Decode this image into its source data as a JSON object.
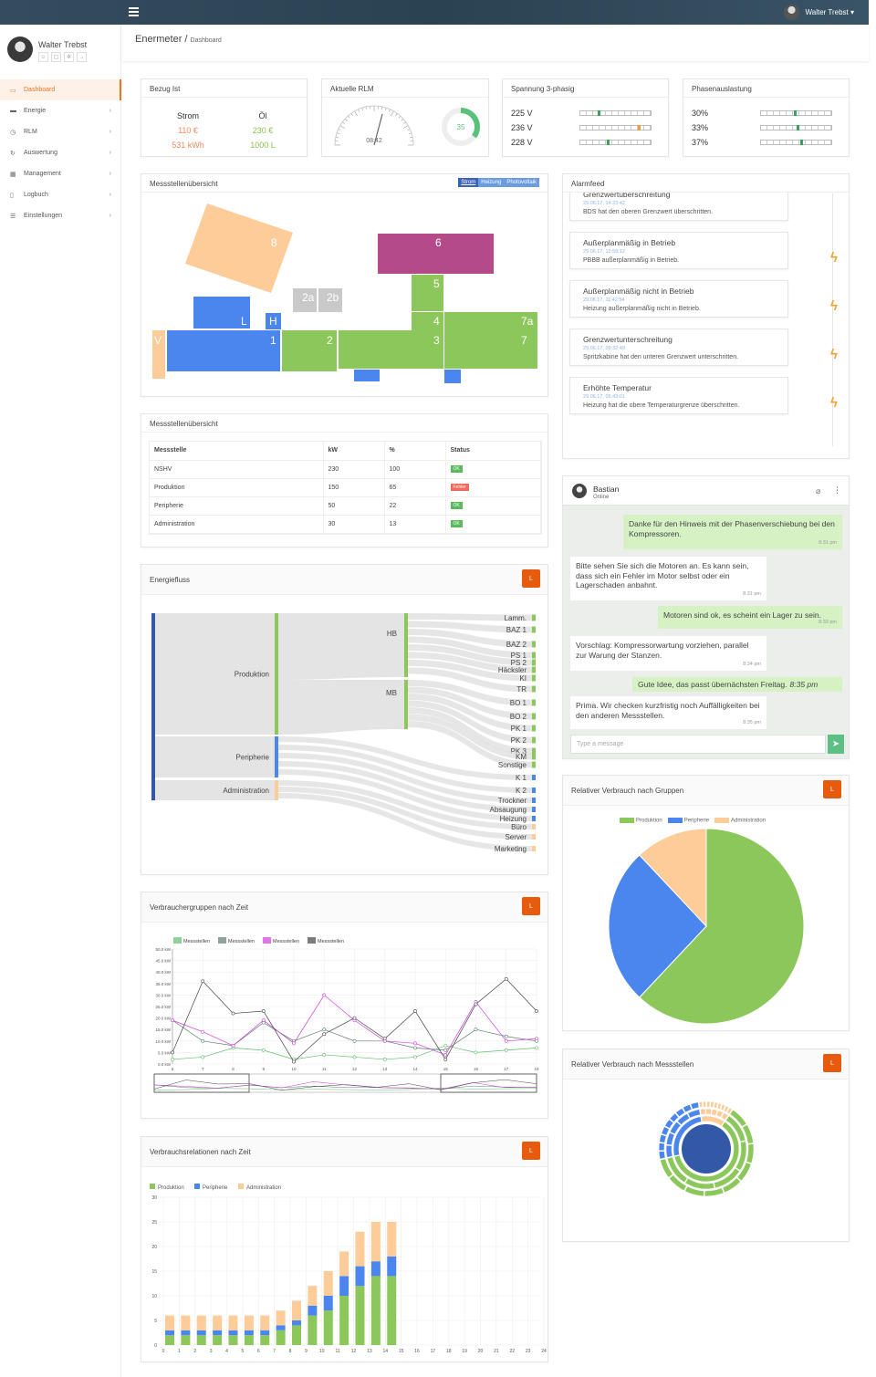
{
  "topbar": {
    "user": "Walter Trebst ▾"
  },
  "sidebar": {
    "user": "Walter Trebst",
    "items": [
      {
        "label": "Dashboard",
        "icon": "▭"
      },
      {
        "label": "Energie",
        "icon": "▬"
      },
      {
        "label": "RLM",
        "icon": "◷"
      },
      {
        "label": "Auswertung",
        "icon": "↻"
      },
      {
        "label": "Management",
        "icon": "▦"
      },
      {
        "label": "Logbuch",
        "icon": "▯"
      },
      {
        "label": "Einstellungen",
        "icon": "☰"
      }
    ]
  },
  "title": {
    "main": "Enermeter",
    "sep": "/",
    "sub": "Dashboard"
  },
  "bezug": {
    "title": "Bezug Ist",
    "col1": {
      "label": "Strom",
      "v1": "110 €",
      "v2": "531 kWh"
    },
    "col2": {
      "label": "Öl",
      "v1": "230 €",
      "v2": "1000 L"
    }
  },
  "rlm": {
    "title": "Aktuelle RLM",
    "time": "08:42",
    "value": "35",
    "fraction": 0.35
  },
  "spannung": {
    "title": "Spannung 3-phasig",
    "rows": [
      "225 V",
      "236 V",
      "228 V"
    ],
    "levels": [
      0.25,
      0.82,
      0.38
    ]
  },
  "phasen": {
    "title": "Phasenauslastung",
    "rows": [
      "30%",
      "33%",
      "37%"
    ],
    "levels": [
      0.47,
      0.5,
      0.56
    ]
  },
  "floor": {
    "title": "Messstellenübersicht",
    "tabs": [
      "Strom",
      "Heizung",
      "Photovoltaik"
    ],
    "labels": {
      "l8": "8",
      "l6": "6",
      "l2a": "2a",
      "l2b": "2b",
      "l5": "5",
      "lL": "L",
      "lH": "H",
      "l4": "4",
      "l7a": "7a",
      "lV": "V",
      "l1": "1",
      "l2": "2",
      "l3": "3",
      "l7": "7"
    }
  },
  "table": {
    "title": "Messstellenübersicht",
    "headers": [
      "Messstelle",
      "kW",
      "%",
      "Status"
    ],
    "rows": [
      {
        "name": "NSHV",
        "kw": "230",
        "pct": "100",
        "status": "OK"
      },
      {
        "name": "Produktion",
        "kw": "150",
        "pct": "65",
        "status": "Fehler"
      },
      {
        "name": "Peripherie",
        "kw": "50",
        "pct": "22",
        "status": "OK"
      },
      {
        "name": "Administration",
        "kw": "30",
        "pct": "13",
        "status": "OK"
      }
    ]
  },
  "alarm": {
    "title": "Alarmfeed",
    "items": [
      {
        "t": "Grenzwertüberschreitung",
        "d": "29.06.17, 14:23:42",
        "m": "BDS hat den oberen Grenzwert überschritten."
      },
      {
        "t": "Außerplanmäßig in Betrieb",
        "d": "29.06.17, 12:59:12",
        "m": "PBBB außerplanmäßig in Betrieb."
      },
      {
        "t": "Außerplanmäßig nicht in Betrieb",
        "d": "29.06.17, 11:42:54",
        "m": "Heizung außerplanmäßig nicht in Betrieb."
      },
      {
        "t": "Grenzwertunterschreitung",
        "d": "29.06.17, 09:32:49",
        "m": "Spritzkabine hat den unteren Grenzwert unterschritten."
      },
      {
        "t": "Erhöhte Temperatur",
        "d": "29.06.17, 05:43:01",
        "m": "Heizung hat die obere Temperaturgrenze überschritten."
      }
    ]
  },
  "chat": {
    "name": "Bastian",
    "status": "Online",
    "placeholder": "Type a message",
    "messages": [
      {
        "dir": "out",
        "text": "Danke für den Hinweis mit der Phasenverschiebung bei den Kompressoren.",
        "time": "8:31 pm"
      },
      {
        "dir": "in",
        "text": "Bitte sehen Sie sich die Motoren an. Es kann sein, dass sich ein Fehler im Motor selbst oder ein Lagerschaden anbahnt.",
        "time": "8:31 pm"
      },
      {
        "dir": "out",
        "text": "Motoren sind ok, es scheint ein Lager zu sein.",
        "time": "8:33 pm"
      },
      {
        "dir": "in",
        "text": "Vorschlag: Kompressorwartung vorziehen, parallel zur Warung der Stanzen.",
        "time": "8:34 pm"
      },
      {
        "dir": "out",
        "text": "Gute Idee, das passt übernächsten Freitag.",
        "time": "8:35 pm"
      },
      {
        "dir": "in",
        "text": "Prima. Wir checken kurzfristig noch Auffälligkeiten bei den anderen Messstellen.",
        "time": "8:35 pm"
      }
    ]
  },
  "energiefluss": {
    "title": "Energiefluss",
    "btn": "L",
    "groups": [
      "Produktion",
      "Peripherie",
      "Administration"
    ],
    "sub": [
      "HB",
      "MB"
    ],
    "targets": [
      "Lamm.",
      "BAZ 1",
      "BAZ 2",
      "PS 1",
      "PS 2",
      "Häcksler",
      "KI",
      "TR",
      "BO 1",
      "BO 2",
      "PK 1",
      "PK 2",
      "PK 3",
      "KM",
      "Sonstige",
      "K 1",
      "K 2",
      "Trockner",
      "Absaugung",
      "Heizung",
      "Büro",
      "Server",
      "Marketing"
    ]
  },
  "pie": {
    "title": "Relativer Verbrauch nach Gruppen",
    "btn": "L"
  },
  "line": {
    "title": "Verbrauchergruppen nach Zeit",
    "btn": "L"
  },
  "sun": {
    "title": "Relativer Verbrauch nach Messstellen",
    "btn": "L"
  },
  "bars": {
    "title": "Verbrauchsrelationen nach Zeit",
    "btn": "L"
  },
  "chart_data": [
    {
      "type": "pie",
      "title": "Relativer Verbrauch nach Gruppen",
      "series": [
        {
          "name": "Produktion",
          "value": 62
        },
        {
          "name": "Peripherie",
          "value": 26
        },
        {
          "name": "Administration",
          "value": 12
        }
      ],
      "colors": [
        "#8cc75b",
        "#4b86ee",
        "#fdcc98"
      ],
      "legend": "top"
    },
    {
      "type": "line",
      "title": "Verbrauchergruppen nach Zeit",
      "legend": "top-left",
      "ylim": [
        0,
        50
      ],
      "yticks": [
        "0.0 kW",
        "5.0 kW",
        "10.0 kW",
        "15.0 kW",
        "20.0 kW",
        "25.0 kW",
        "30.0 kW",
        "35.0 kW",
        "40.0 kW",
        "45.0 kW",
        "50.0 kW"
      ],
      "x": [
        6,
        7,
        8,
        9,
        10,
        11,
        12,
        13,
        14,
        15,
        16,
        17,
        18
      ],
      "series": [
        {
          "name": "Messstellen",
          "color": "#5fbf6b",
          "values": [
            2,
            3,
            7,
            6,
            2,
            4,
            3,
            2,
            3,
            8,
            5,
            6,
            7
          ]
        },
        {
          "name": "Messstellen",
          "color": "#5b7f6e",
          "values": [
            19,
            10,
            8,
            18,
            10,
            15,
            10,
            10,
            7,
            6,
            15,
            12,
            10
          ]
        },
        {
          "name": "Messstellen",
          "color": "#d33be0",
          "values": [
            19,
            14,
            8,
            19,
            9,
            30,
            19,
            10,
            9,
            4,
            27,
            10,
            11
          ]
        },
        {
          "name": "Messstellen",
          "color": "#444444",
          "values": [
            5,
            36,
            22,
            23,
            1,
            13,
            20,
            11,
            23,
            2,
            26,
            37,
            23
          ]
        }
      ]
    },
    {
      "type": "sunburst",
      "title": "Relativer Verbrauch nach Messstellen",
      "rings": [
        {
          "name": "inner",
          "colors": [
            "#3458a8"
          ]
        },
        {
          "name": "outer",
          "segments": [
            {
              "color": "#8cc75b",
              "value": 62
            },
            {
              "color": "#4b86ee",
              "value": 26
            },
            {
              "color": "#fdcc98",
              "value": 12
            }
          ]
        }
      ]
    },
    {
      "type": "bar",
      "title": "Verbrauchsrelationen nach Zeit",
      "stacked": true,
      "legend": "top-left",
      "ylim": [
        0,
        30
      ],
      "categories": [
        "0",
        "1",
        "2",
        "3",
        "4",
        "5",
        "6",
        "7",
        "8",
        "9",
        "10",
        "11",
        "12",
        "13",
        "14",
        "15",
        "16",
        "17",
        "18",
        "19",
        "20",
        "21",
        "22",
        "23",
        "24"
      ],
      "series": [
        {
          "name": "Produktion",
          "color": "#8cc75b",
          "values": [
            2,
            2,
            2,
            2,
            2,
            2,
            2,
            3,
            4,
            6,
            7,
            10,
            12,
            14,
            14,
            0,
            0,
            0,
            0,
            0,
            0,
            0,
            0,
            0,
            0
          ]
        },
        {
          "name": "Peripherie",
          "color": "#4b86ee",
          "values": [
            1,
            1,
            1,
            1,
            1,
            1,
            1,
            1,
            1,
            2,
            3,
            4,
            4,
            3,
            4,
            0,
            0,
            0,
            0,
            0,
            0,
            0,
            0,
            0,
            0
          ]
        },
        {
          "name": "Administration",
          "color": "#fdcc98",
          "values": [
            3,
            3,
            3,
            3,
            3,
            3,
            3,
            3,
            4,
            4,
            5,
            5,
            7,
            8,
            7,
            0,
            0,
            0,
            0,
            0,
            0,
            0,
            0,
            0,
            0
          ]
        }
      ]
    }
  ]
}
